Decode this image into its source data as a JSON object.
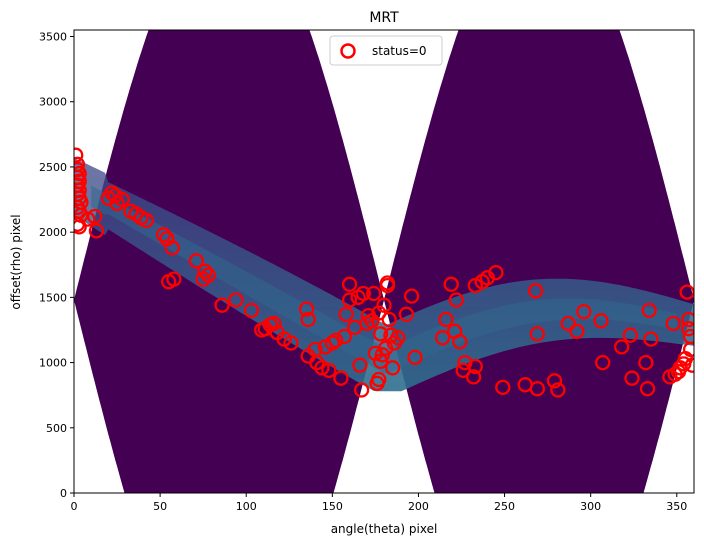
{
  "chart_data": {
    "type": "scatter",
    "title": "MRT",
    "xlabel": "angle(theta) pixel",
    "ylabel": "offset(rho) pixel",
    "xlim": [
      0,
      360
    ],
    "ylim": [
      0,
      3550
    ],
    "x_ticks": [
      0,
      50,
      100,
      150,
      200,
      250,
      300,
      350
    ],
    "y_ticks": [
      0,
      500,
      1000,
      1500,
      2000,
      2500,
      3000,
      3500
    ],
    "legend": {
      "location": "upper center",
      "entries": [
        "status=0"
      ]
    },
    "colors": {
      "background": "#440154",
      "band": "#3b528b",
      "marker": "#ff0000"
    },
    "series": [
      {
        "name": "status=0",
        "marker": "open-circle",
        "points": [
          [
            1,
            2590
          ],
          [
            2,
            2520
          ],
          [
            2,
            2480
          ],
          [
            3,
            2450
          ],
          [
            2,
            2420
          ],
          [
            3,
            2390
          ],
          [
            2,
            2360
          ],
          [
            3,
            2320
          ],
          [
            2,
            2290
          ],
          [
            3,
            2260
          ],
          [
            4,
            2230
          ],
          [
            2,
            2190
          ],
          [
            3,
            2160
          ],
          [
            4,
            2130
          ],
          [
            2,
            2060
          ],
          [
            3,
            2040
          ],
          [
            8,
            2100
          ],
          [
            12,
            2120
          ],
          [
            13,
            2010
          ],
          [
            20,
            2260
          ],
          [
            22,
            2300
          ],
          [
            24,
            2280
          ],
          [
            25,
            2220
          ],
          [
            28,
            2250
          ],
          [
            33,
            2160
          ],
          [
            36,
            2140
          ],
          [
            39,
            2110
          ],
          [
            42,
            2090
          ],
          [
            52,
            1980
          ],
          [
            54,
            1950
          ],
          [
            57,
            1880
          ],
          [
            55,
            1620
          ],
          [
            58,
            1640
          ],
          [
            71,
            1780
          ],
          [
            76,
            1700
          ],
          [
            78,
            1670
          ],
          [
            75,
            1640
          ],
          [
            86,
            1440
          ],
          [
            94,
            1480
          ],
          [
            103,
            1400
          ],
          [
            109,
            1250
          ],
          [
            111,
            1260
          ],
          [
            114,
            1290
          ],
          [
            116,
            1300
          ],
          [
            118,
            1230
          ],
          [
            122,
            1180
          ],
          [
            126,
            1150
          ],
          [
            135,
            1410
          ],
          [
            136,
            1330
          ],
          [
            136,
            1050
          ],
          [
            140,
            1100
          ],
          [
            141,
            1000
          ],
          [
            144,
            960
          ],
          [
            146,
            1120
          ],
          [
            148,
            940
          ],
          [
            150,
            1150
          ],
          [
            152,
            1170
          ],
          [
            155,
            880
          ],
          [
            157,
            1200
          ],
          [
            158,
            1370
          ],
          [
            160,
            1600
          ],
          [
            160,
            1480
          ],
          [
            163,
            1270
          ],
          [
            165,
            1500
          ],
          [
            166,
            980
          ],
          [
            167,
            790
          ],
          [
            168,
            1530
          ],
          [
            170,
            1300
          ],
          [
            171,
            1360
          ],
          [
            173,
            1320
          ],
          [
            174,
            1530
          ],
          [
            175,
            1070
          ],
          [
            176,
            840
          ],
          [
            177,
            870
          ],
          [
            177,
            1380
          ],
          [
            178,
            1220
          ],
          [
            178,
            1010
          ],
          [
            179,
            1060
          ],
          [
            180,
            1440
          ],
          [
            181,
            1110
          ],
          [
            182,
            1610
          ],
          [
            182,
            1590
          ],
          [
            183,
            1330
          ],
          [
            184,
            1210
          ],
          [
            185,
            960
          ],
          [
            186,
            1150
          ],
          [
            188,
            1190
          ],
          [
            193,
            1370
          ],
          [
            196,
            1510
          ],
          [
            198,
            1040
          ],
          [
            214,
            1190
          ],
          [
            216,
            1330
          ],
          [
            219,
            1600
          ],
          [
            221,
            1240
          ],
          [
            222,
            1480
          ],
          [
            224,
            1160
          ],
          [
            226,
            940
          ],
          [
            227,
            1000
          ],
          [
            232,
            890
          ],
          [
            233,
            970
          ],
          [
            233,
            1590
          ],
          [
            237,
            1620
          ],
          [
            240,
            1650
          ],
          [
            245,
            1690
          ],
          [
            249,
            810
          ],
          [
            262,
            830
          ],
          [
            268,
            1550
          ],
          [
            269,
            1220
          ],
          [
            269,
            800
          ],
          [
            279,
            860
          ],
          [
            281,
            790
          ],
          [
            287,
            1300
          ],
          [
            292,
            1240
          ],
          [
            296,
            1390
          ],
          [
            306,
            1320
          ],
          [
            307,
            1000
          ],
          [
            318,
            1120
          ],
          [
            323,
            1210
          ],
          [
            324,
            880
          ],
          [
            332,
            1000
          ],
          [
            333,
            800
          ],
          [
            334,
            1400
          ],
          [
            335,
            1180
          ],
          [
            346,
            890
          ],
          [
            348,
            1300
          ],
          [
            349,
            910
          ],
          [
            351,
            930
          ],
          [
            352,
            960
          ],
          [
            354,
            990
          ],
          [
            355,
            1030
          ],
          [
            356,
            1540
          ],
          [
            357,
            1330
          ],
          [
            357,
            1260
          ],
          [
            358,
            1200
          ],
          [
            358,
            1100
          ],
          [
            359,
            980
          ]
        ]
      }
    ]
  }
}
